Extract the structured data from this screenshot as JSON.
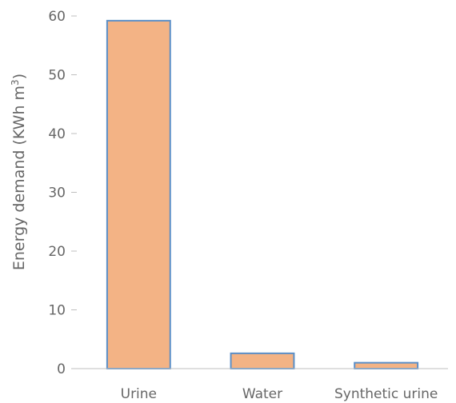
{
  "chart_data": {
    "type": "bar",
    "categories": [
      "Urine",
      "Water",
      "Synthetic urine"
    ],
    "values": [
      59.2,
      2.6,
      1.0
    ],
    "title": "",
    "xlabel": "",
    "ylabel_text": "Energy demand (KWh m",
    "ylabel_sup": "3",
    "ylabel_end": ")",
    "ylim": [
      0,
      60
    ],
    "yticks": [
      "0",
      "10",
      "20",
      "30",
      "40",
      "50",
      "60"
    ],
    "grid": false,
    "legend": "none",
    "bar_fill": "#F3B385",
    "bar_stroke": "#5B8FC7",
    "axis_color": "#BFBFBF"
  }
}
